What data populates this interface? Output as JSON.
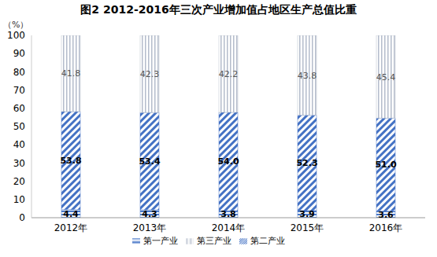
{
  "chart_data": {
    "type": "bar",
    "title": "图2 2012-2016年三次产业增加值占地区生产总值比重",
    "y_label": "（%）",
    "categories": [
      "2012年",
      "2013年",
      "2014年",
      "2015年",
      "2016年"
    ],
    "series": [
      {
        "name": "第一产业",
        "color": "#4a78c8",
        "values": [
          4.4,
          4.3,
          3.8,
          3.9,
          3.6
        ]
      },
      {
        "name": "第二产业",
        "color": "#4472c4",
        "values": [
          53.8,
          53.4,
          54.0,
          52.3,
          51.0
        ],
        "value_labels": [
          "53.8",
          "53.4",
          "54.0",
          "52.3",
          "51.0"
        ]
      },
      {
        "name": "第三产业",
        "color": "#b4bccb",
        "values": [
          41.8,
          42.3,
          42.2,
          43.8,
          45.4
        ]
      }
    ],
    "ylim": [
      0,
      100
    ],
    "yticks": [
      0,
      10,
      20,
      30,
      40,
      50,
      60,
      70,
      80,
      90,
      100
    ],
    "stacked": true,
    "data_labels": true,
    "grid": false,
    "legend": "bottom"
  }
}
